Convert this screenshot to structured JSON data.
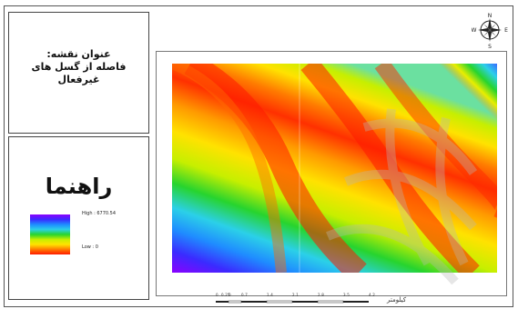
{
  "map": {
    "title": "عنوان نقشه:\nفاصله از گسل های\nغیرفعال",
    "legend": {
      "heading": "راهنما",
      "high_label": "High : 6770.54",
      "low_label": "Low : 0",
      "ramp_colors": [
        "#8b00ff",
        "#3a2bff",
        "#1f8cff",
        "#2bd0e8",
        "#27d42e",
        "#c6ef00",
        "#ffe200",
        "#ff7a00",
        "#ff1a00"
      ]
    },
    "north_arrow": {
      "n": "N",
      "s": "S",
      "e": "E",
      "w": "W"
    },
    "scale_bar": {
      "ticks": [
        "0",
        "0.25",
        "0",
        "0.7",
        "1.4",
        "2.1",
        "2.8",
        "3.5",
        "4.2"
      ],
      "unit": "کیلومتر"
    }
  }
}
